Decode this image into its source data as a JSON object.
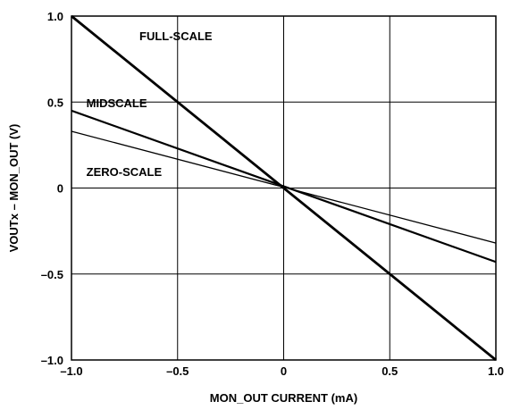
{
  "chart_data": {
    "type": "line",
    "title": "",
    "xlabel": "MON_OUT CURRENT (mA)",
    "ylabel": "VOUTx – MON_OUT (V)",
    "xlim": [
      -1.0,
      1.0
    ],
    "ylim": [
      -1.0,
      1.0
    ],
    "grid": true,
    "x_ticks": [
      {
        "value": -1.0,
        "label": "–1.0"
      },
      {
        "value": -0.5,
        "label": "–0.5"
      },
      {
        "value": 0,
        "label": "0"
      },
      {
        "value": 0.5,
        "label": "0.5"
      },
      {
        "value": 1.0,
        "label": "1.0"
      }
    ],
    "y_ticks": [
      {
        "value": -1.0,
        "label": "–1.0"
      },
      {
        "value": -0.5,
        "label": "–0.5"
      },
      {
        "value": 0,
        "label": "0"
      },
      {
        "value": 0.5,
        "label": "0.5"
      },
      {
        "value": 1.0,
        "label": "1.0"
      }
    ],
    "series": [
      {
        "name": "FULL-SCALE",
        "x": [
          -1.0,
          1.0
        ],
        "y": [
          1.0,
          -1.0
        ],
        "stroke_width": 2.8
      },
      {
        "name": "MIDSCALE",
        "x": [
          -1.0,
          1.0
        ],
        "y": [
          0.45,
          -0.43
        ],
        "stroke_width": 2.2
      },
      {
        "name": "ZERO-SCALE",
        "x": [
          -1.0,
          1.0
        ],
        "y": [
          0.33,
          -0.32
        ],
        "stroke_width": 1.3
      }
    ],
    "annotations": [
      {
        "text": "FULL-SCALE",
        "series": "FULL-SCALE",
        "x": -0.68,
        "y": 0.86
      },
      {
        "text": "MIDSCALE",
        "series": "MIDSCALE",
        "x": -0.93,
        "y": 0.47
      },
      {
        "text": "ZERO-SCALE",
        "series": "ZERO-SCALE",
        "x": -0.93,
        "y": 0.07
      }
    ],
    "colors": {
      "line": "#000000",
      "grid": "#000000",
      "background": "#ffffff"
    }
  }
}
